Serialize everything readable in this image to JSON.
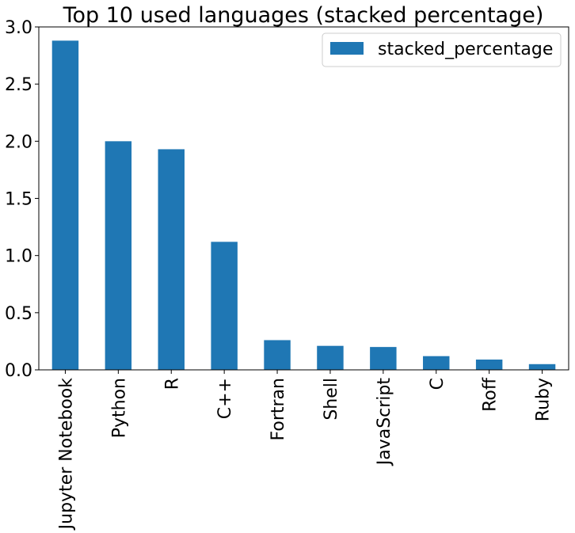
{
  "chart_data": {
    "type": "bar",
    "title": "Top 10 used languages (stacked percentage)",
    "xlabel": "",
    "ylabel": "",
    "categories": [
      "Jupyter Notebook",
      "Python",
      "R",
      "C++",
      "Fortran",
      "Shell",
      "JavaScript",
      "C",
      "Roff",
      "Ruby"
    ],
    "series": [
      {
        "name": "stacked_percentage",
        "color": "#1f77b4",
        "values": [
          2.88,
          2.0,
          1.93,
          1.12,
          0.26,
          0.21,
          0.2,
          0.12,
          0.09,
          0.05
        ]
      }
    ],
    "ylim": [
      0,
      3.0
    ],
    "yticks": [
      "0.0",
      "0.5",
      "1.0",
      "1.5",
      "2.0",
      "2.5",
      "3.0"
    ],
    "legend_position": "top-right",
    "grid": false
  }
}
